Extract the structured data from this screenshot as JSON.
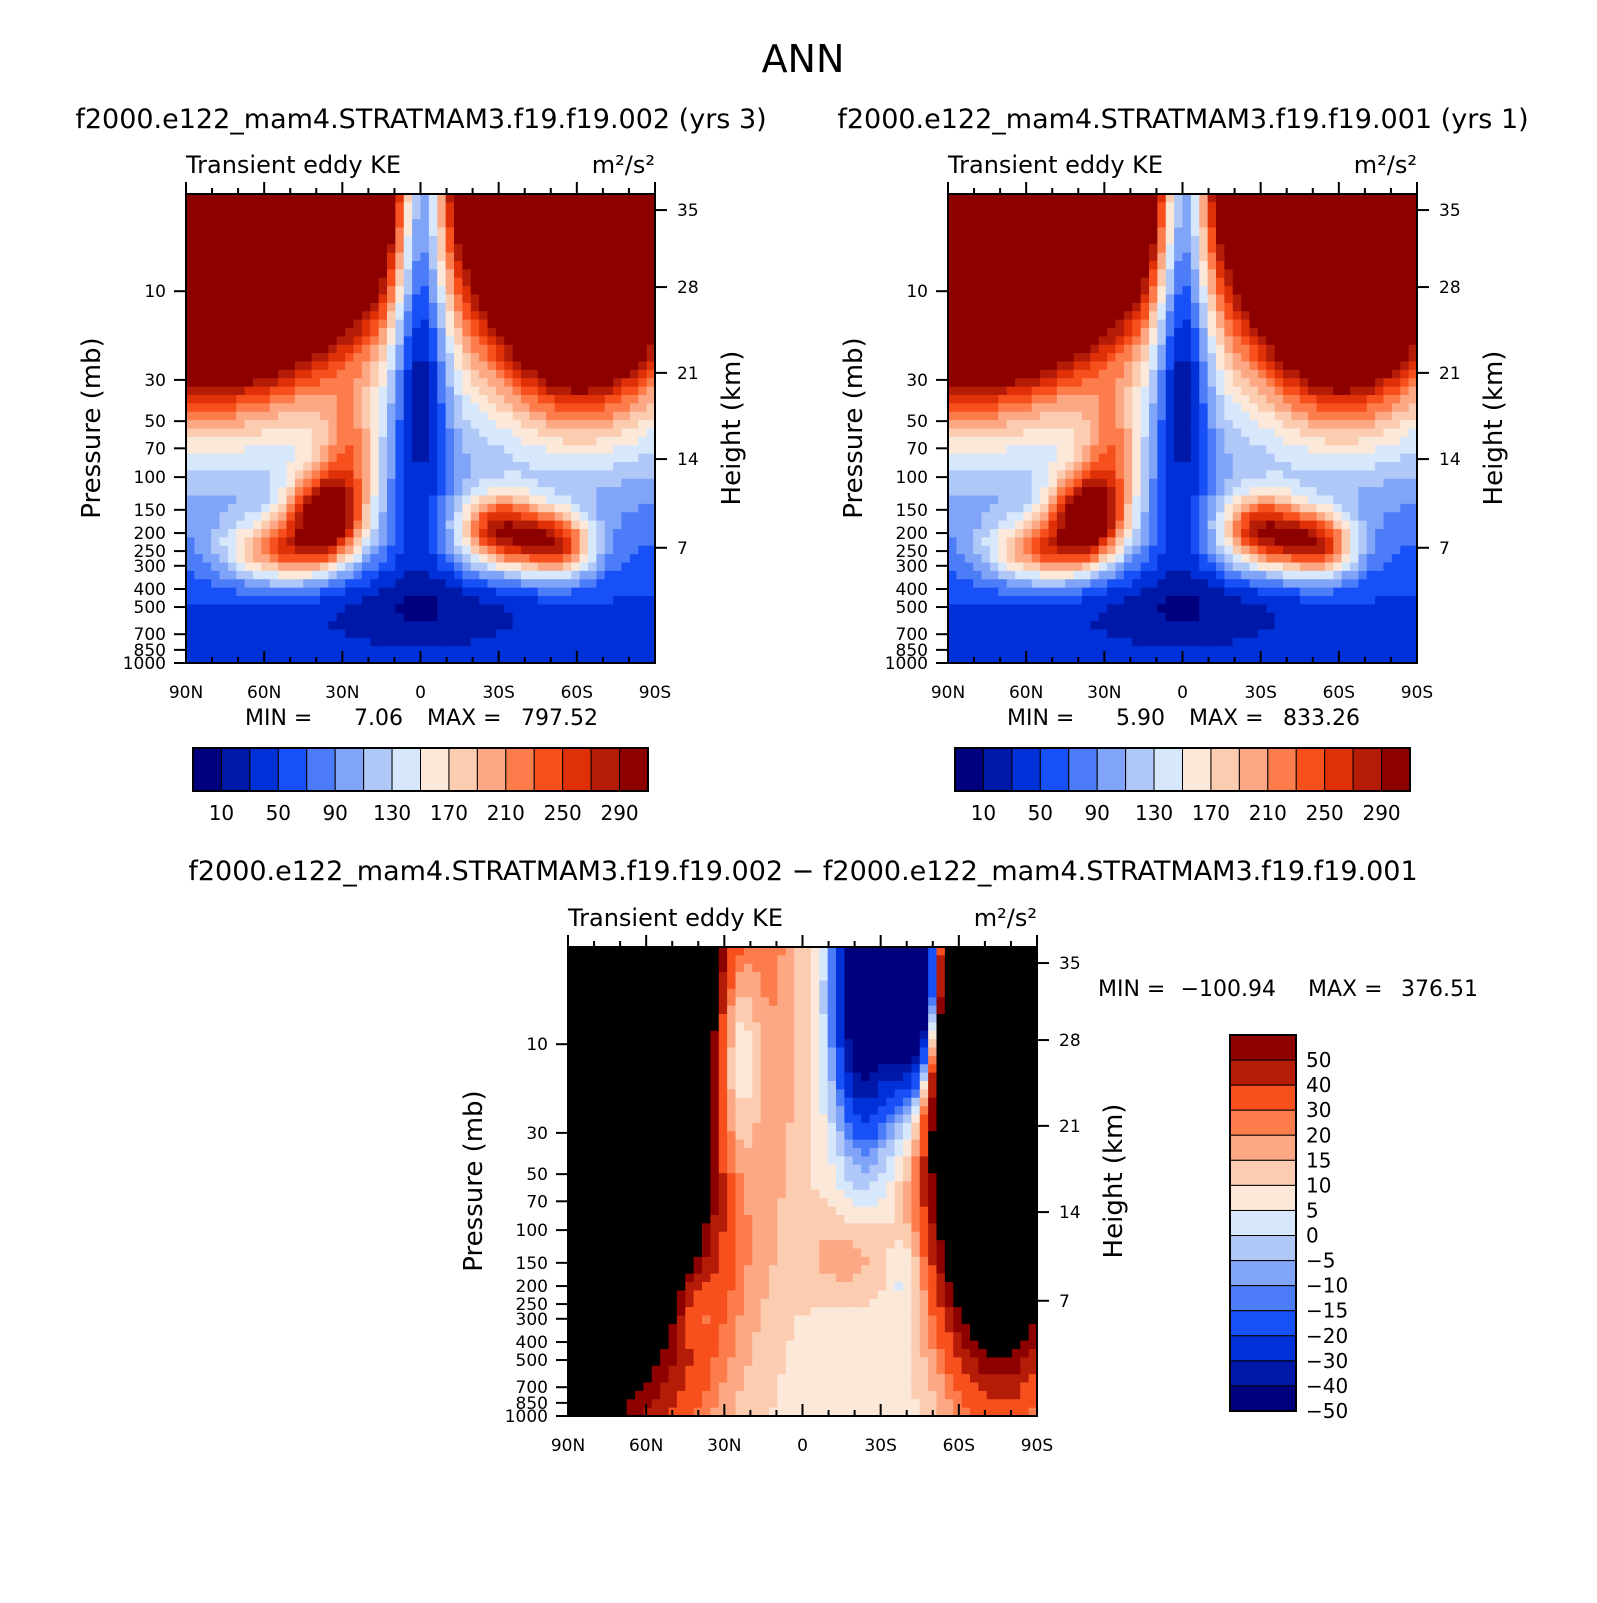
{
  "page": {
    "title": "ANN"
  },
  "colormaps": {
    "main": [
      "#00007f",
      "#0018a8",
      "#0030d8",
      "#1850f8",
      "#4c7cf8",
      "#80a4f8",
      "#b0c8f8",
      "#d8e8fc",
      "#fce8d8",
      "#fcccb0",
      "#fca884",
      "#fc7c4c",
      "#f8501c",
      "#e03008",
      "#b41c08",
      "#8c0000"
    ],
    "diff": [
      "#00007f",
      "#0018a8",
      "#0030d8",
      "#1850f8",
      "#4c7cf8",
      "#80a4f8",
      "#b0c8f8",
      "#d8e8fc",
      "#fce8d8",
      "#fcccb0",
      "#fca884",
      "#fc7c4c",
      "#f8501c",
      "#b41c08",
      "#8c0000"
    ]
  },
  "chart_data": [
    {
      "type": "heatmap",
      "title": "f2000.e122_mam4.STRATMAM3.f19.f19.002 (yrs 3)",
      "left_label": "Transient eddy KE",
      "units_label": "m²/s²",
      "ylabel": "Pressure (mb)",
      "ylabel_right": "Height (km)",
      "x_ticks": [
        "90N",
        "60N",
        "30N",
        "0",
        "30S",
        "60S",
        "90S"
      ],
      "x_values": [
        90,
        60,
        30,
        0,
        -30,
        -60,
        -90
      ],
      "xlim": [
        90,
        -90
      ],
      "y_ticks": [
        "10",
        "30",
        "50",
        "70",
        "100",
        "150",
        "200",
        "250",
        "300",
        "400",
        "500",
        "700",
        "850",
        "1000"
      ],
      "y_values": [
        10,
        30,
        50,
        70,
        100,
        150,
        200,
        250,
        300,
        400,
        500,
        700,
        850,
        1000
      ],
      "ylim": [
        1000,
        3
      ],
      "right_ticks": [
        "35",
        "28",
        "21",
        "14",
        "7"
      ],
      "right_values": [
        35,
        28,
        21,
        14,
        7
      ],
      "min_label": "MIN =",
      "min_value": "7.06",
      "max_label": "MAX =",
      "max_value": "797.52",
      "colorbar_labels": [
        "10",
        "50",
        "90",
        "130",
        "170",
        "210",
        "250",
        "290"
      ],
      "levels": [
        10,
        30,
        50,
        70,
        90,
        110,
        130,
        150,
        170,
        190,
        210,
        230,
        250,
        270,
        290
      ]
    },
    {
      "type": "heatmap",
      "title": "f2000.e122_mam4.STRATMAM3.f19.f19.001 (yrs 1)",
      "left_label": "Transient eddy KE",
      "units_label": "m²/s²",
      "ylabel": "Pressure (mb)",
      "ylabel_right": "Height (km)",
      "x_ticks": [
        "90N",
        "60N",
        "30N",
        "0",
        "30S",
        "60S",
        "90S"
      ],
      "x_values": [
        90,
        60,
        30,
        0,
        -30,
        -60,
        -90
      ],
      "xlim": [
        90,
        -90
      ],
      "y_ticks": [
        "10",
        "30",
        "50",
        "70",
        "100",
        "150",
        "200",
        "250",
        "300",
        "400",
        "500",
        "700",
        "850",
        "1000"
      ],
      "y_values": [
        10,
        30,
        50,
        70,
        100,
        150,
        200,
        250,
        300,
        400,
        500,
        700,
        850,
        1000
      ],
      "ylim": [
        1000,
        3
      ],
      "right_ticks": [
        "35",
        "28",
        "21",
        "14",
        "7"
      ],
      "right_values": [
        35,
        28,
        21,
        14,
        7
      ],
      "min_label": "MIN =",
      "min_value": "5.90",
      "max_label": "MAX =",
      "max_value": "833.26",
      "colorbar_labels": [
        "10",
        "50",
        "90",
        "130",
        "170",
        "210",
        "250",
        "290"
      ],
      "levels": [
        10,
        30,
        50,
        70,
        90,
        110,
        130,
        150,
        170,
        190,
        210,
        230,
        250,
        270,
        290
      ]
    },
    {
      "type": "heatmap",
      "title": "f2000.e122_mam4.STRATMAM3.f19.f19.002 − f2000.e122_mam4.STRATMAM3.f19.f19.001",
      "left_label": "Transient eddy KE",
      "units_label": "m²/s²",
      "ylabel": "Pressure (mb)",
      "ylabel_right": "Height (km)",
      "x_ticks": [
        "90N",
        "60N",
        "30N",
        "0",
        "30S",
        "60S",
        "90S"
      ],
      "x_values": [
        90,
        60,
        30,
        0,
        -30,
        -60,
        -90
      ],
      "xlim": [
        90,
        -90
      ],
      "y_ticks": [
        "10",
        "30",
        "50",
        "70",
        "100",
        "150",
        "200",
        "250",
        "300",
        "400",
        "500",
        "700",
        "850",
        "1000"
      ],
      "y_values": [
        10,
        30,
        50,
        70,
        100,
        150,
        200,
        250,
        300,
        400,
        500,
        700,
        850,
        1000
      ],
      "ylim": [
        1000,
        3
      ],
      "right_ticks": [
        "35",
        "28",
        "21",
        "14",
        "7"
      ],
      "right_values": [
        35,
        28,
        21,
        14,
        7
      ],
      "min_label": "MIN =",
      "min_value": "−100.94",
      "max_label": "MAX =",
      "max_value": "376.51",
      "colorbar_labels": [
        "50",
        "40",
        "30",
        "20",
        "15",
        "10",
        "5",
        "0",
        "−5",
        "−10",
        "−15",
        "−20",
        "−30",
        "−40",
        "−50"
      ],
      "levels": [
        -50,
        -40,
        -30,
        -20,
        -15,
        -10,
        -5,
        0,
        5,
        10,
        15,
        20,
        30,
        40,
        50
      ]
    }
  ]
}
